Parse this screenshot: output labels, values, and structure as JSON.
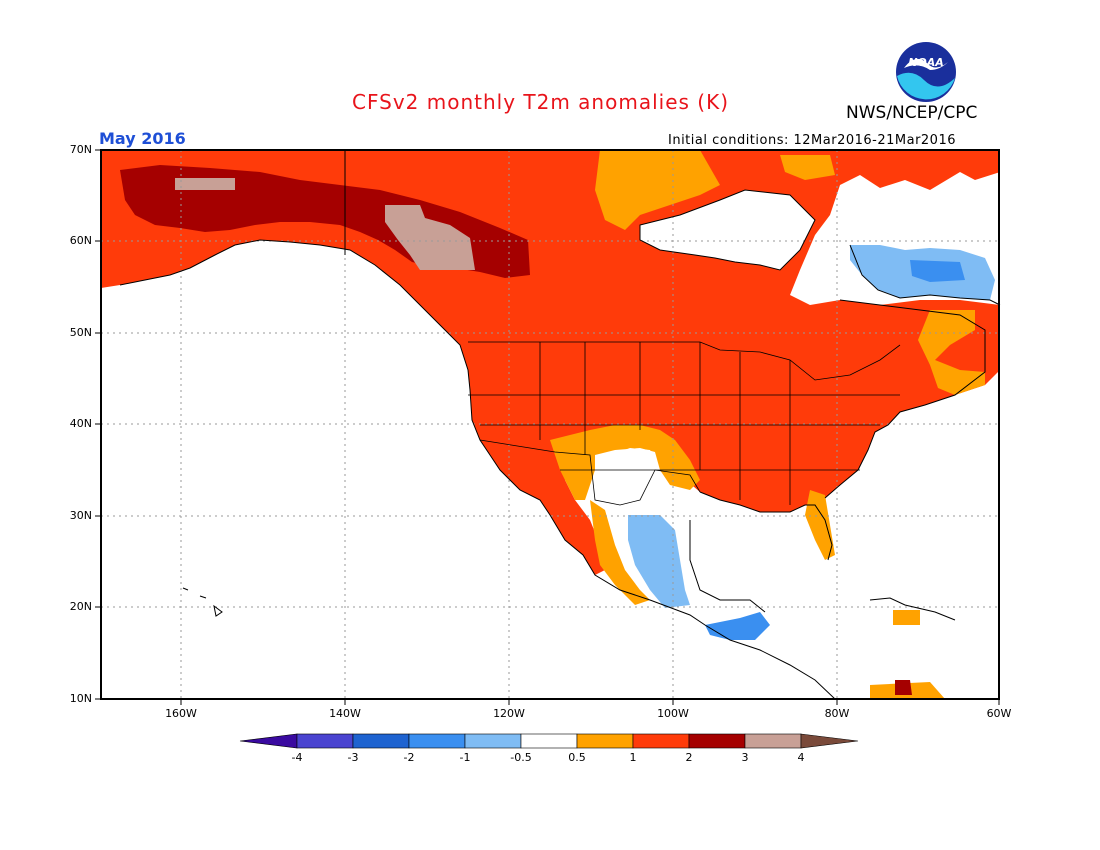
{
  "header": {
    "title": "CFSv2 monthly T2m anomalies (K)",
    "org": "NWS/NCEP/CPC",
    "logo_text": "NOAA",
    "month": "May 2016",
    "initial_conditions": "Initial conditions: 12Mar2016-21Mar2016"
  },
  "colors": {
    "title": "#e8141b",
    "month": "#1e4fd6",
    "ocean": "#ffffff",
    "grid": "#9a9a9a"
  },
  "axes": {
    "lat_labels": [
      "70N",
      "60N",
      "50N",
      "40N",
      "30N",
      "20N",
      "10N"
    ],
    "lon_labels": [
      "160W",
      "140W",
      "120W",
      "100W",
      "80W",
      "60W"
    ]
  },
  "colorbar": {
    "levels": [
      "-4",
      "-3",
      "-2",
      "-1",
      "-0.5",
      "0.5",
      "1",
      "2",
      "3",
      "4"
    ],
    "colors": [
      "#3a0aa0",
      "#4a44d0",
      "#1e63d0",
      "#3a8ff0",
      "#7fbcf4",
      "#ffffff",
      "#ffa200",
      "#ff3b0a",
      "#a50000",
      "#c8a096",
      "#7a4a3a"
    ]
  },
  "map_regions": [
    {
      "name": "alaska-yukon-band",
      "anomaly": "2 to 3",
      "color": "#a50000"
    },
    {
      "name": "alaska-yukon-peak",
      "anomaly": "3 to 4",
      "color": "#c8a096"
    },
    {
      "name": "continental-warm",
      "anomaly": "1 to 2",
      "color": "#ff3b0a"
    },
    {
      "name": "warm-fringe",
      "anomaly": "0.5 to 1",
      "color": "#ffa200"
    },
    {
      "name": "labrador-cool",
      "anomaly": "-1 to -0.5",
      "color": "#7fbcf4"
    },
    {
      "name": "mexico-cool",
      "anomaly": "-1 to -0.5",
      "color": "#7fbcf4"
    },
    {
      "name": "central-america-cool",
      "anomaly": "-2 to -1",
      "color": "#3a8ff0"
    },
    {
      "name": "southwest-neutral",
      "anomaly": "-0.5 to 0.5",
      "color": "#ffffff"
    },
    {
      "name": "hudson-bay-neutral",
      "anomaly": "-0.5 to 0.5",
      "color": "#ffffff"
    }
  ]
}
